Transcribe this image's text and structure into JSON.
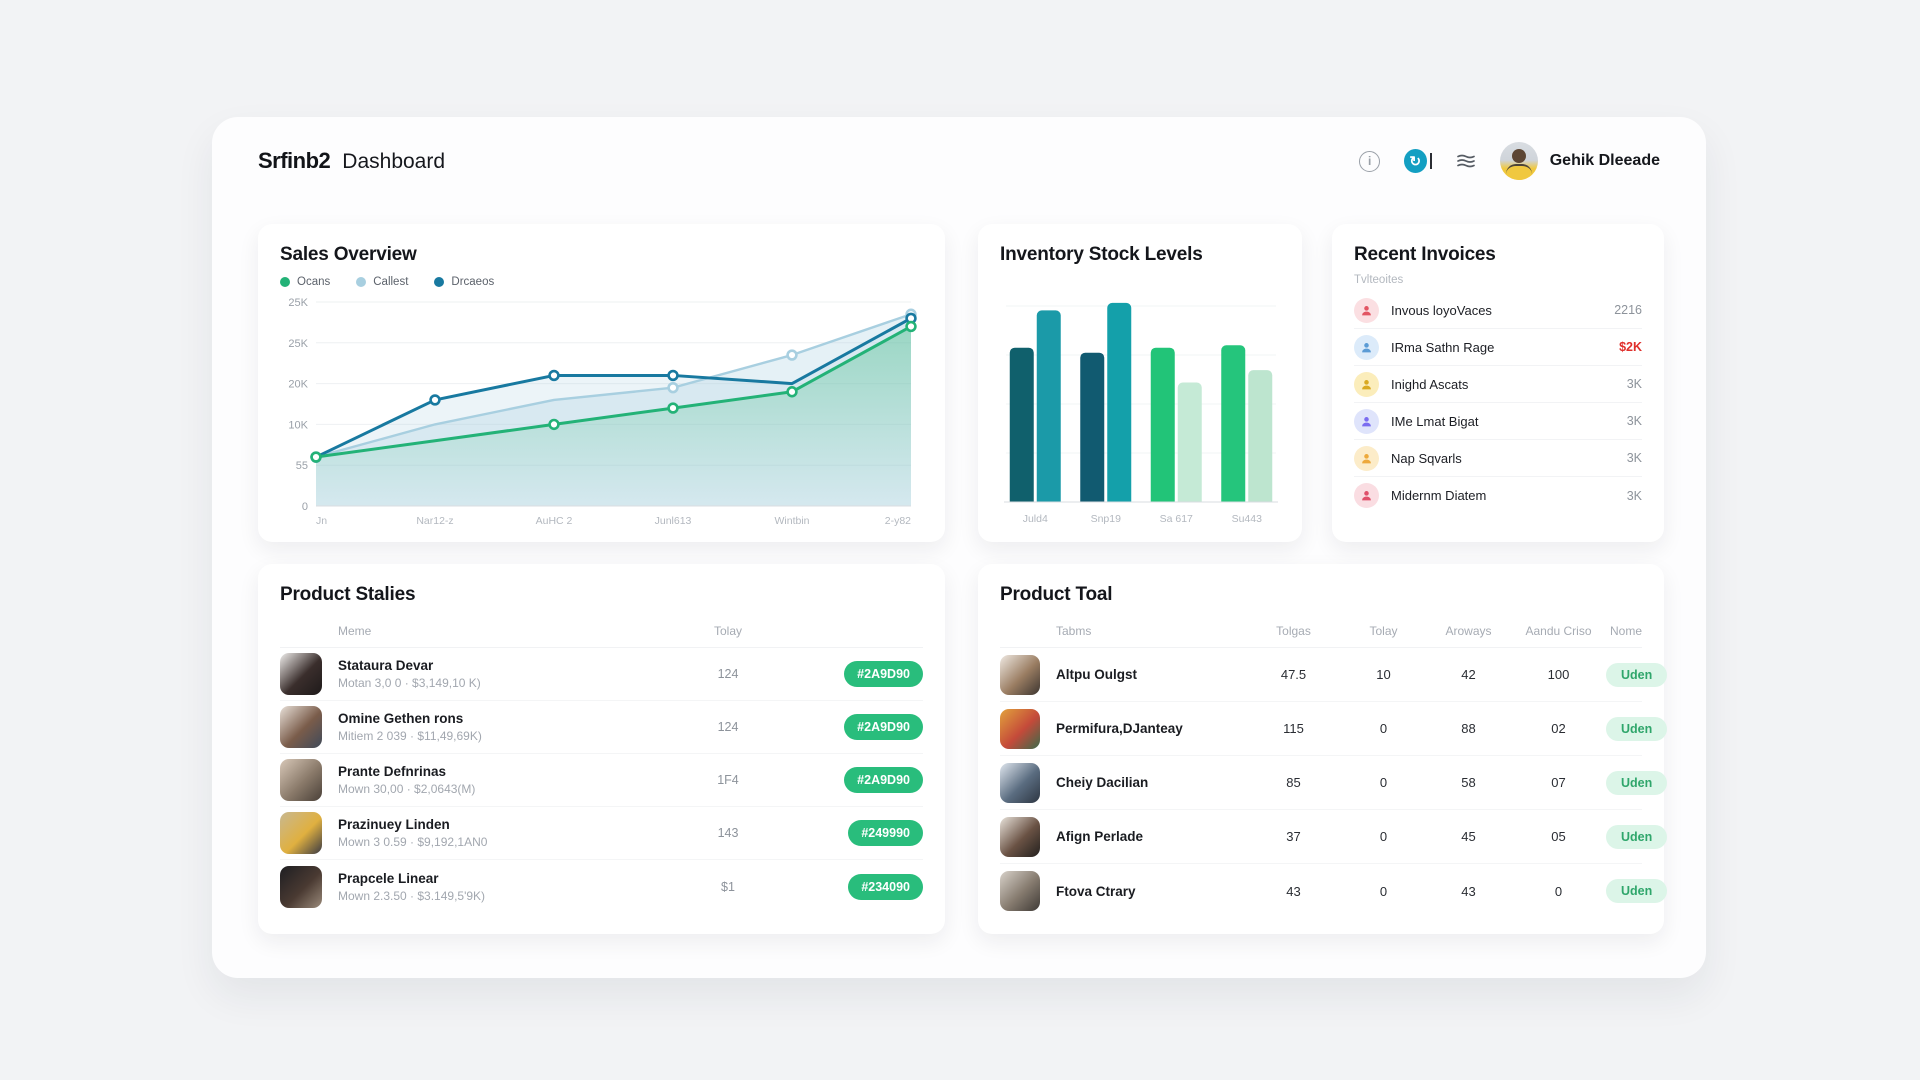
{
  "header": {
    "logo": "Srfinb2",
    "app_title": "Dashboard",
    "user_name": "Gehik Dleeade",
    "icons": [
      "info-icon",
      "app-circle-icon",
      "sliders-icon"
    ]
  },
  "accent": {
    "green": "#22ba77",
    "teal": "#1879a0",
    "red": "#e02f2b"
  },
  "chart_data": [
    {
      "type": "area",
      "title": "Sales Overview",
      "x": [
        "Jn",
        "Nar12-z",
        "AuHC 2",
        "Junl613",
        "Wintbin",
        "2-y82"
      ],
      "series": [
        {
          "name": "Ocans",
          "color": "#23b277",
          "values": [
            6,
            8,
            10,
            12,
            14,
            22
          ]
        },
        {
          "name": "Callest",
          "color": "#a8cfe0",
          "values": [
            6,
            10,
            13,
            14.5,
            18.5,
            23.5
          ]
        },
        {
          "name": "Drcaeos",
          "color": "#1879a0",
          "values": [
            6,
            13,
            16,
            16,
            15,
            23
          ]
        }
      ],
      "y_ticks": [
        "25K",
        "25K",
        "20K",
        "10K",
        "55",
        "0"
      ],
      "ylim": [
        0,
        25
      ],
      "grid": true,
      "legend_position": "top-left"
    },
    {
      "type": "bar",
      "title": "Inventory Stock Levels",
      "categories": [
        "Juld4",
        "Snp19",
        "Sa 617",
        "Su443"
      ],
      "series": [
        {
          "name": "primary",
          "values": [
            310,
            300,
            310,
            315
          ]
        },
        {
          "name": "secondary",
          "values": [
            385,
            400,
            240,
            265
          ]
        }
      ],
      "bar_colors": [
        [
          "#10606c",
          "#1b9aa8"
        ],
        [
          "#115a70",
          "#14a0aa"
        ],
        [
          "#22c478",
          "#c5ead6"
        ],
        [
          "#25c57c",
          "#bde5cf"
        ]
      ],
      "ylim": [
        0,
        430
      ],
      "grid": true
    }
  ],
  "sales_card": {
    "title": "Sales Overview"
  },
  "bars_card": {
    "title": "Inventory Stock Levels"
  },
  "invoices": {
    "title": "Recent Invoices",
    "subtitle": "Tvlteoites",
    "items": [
      {
        "name": "Invous loyoVaces",
        "value": "2216",
        "negative": false,
        "icon": "person-icon",
        "icon_bg": "#fbdfe2",
        "icon_color": "#e25563"
      },
      {
        "name": "IRma Sathn Rage",
        "value": "$2K",
        "negative": true,
        "icon": "person-icon",
        "icon_bg": "#dcebfa",
        "icon_color": "#5b9bd5"
      },
      {
        "name": "Inighd Ascats",
        "value": "3K",
        "negative": false,
        "icon": "person-icon",
        "icon_bg": "#fbedbb",
        "icon_color": "#d9a921"
      },
      {
        "name": "IMe Lmat Bigat",
        "value": "3K",
        "negative": false,
        "icon": "person-icon",
        "icon_bg": "#dfe4fb",
        "icon_color": "#7a6cf0"
      },
      {
        "name": "Nap Sqvarls",
        "value": "3K",
        "negative": false,
        "icon": "person-icon",
        "icon_bg": "#fcecc9",
        "icon_color": "#eda93c"
      },
      {
        "name": "Midernm Diatem",
        "value": "3K",
        "negative": false,
        "icon": "person-icon",
        "icon_bg": "#fadde2",
        "icon_color": "#e0506b"
      }
    ]
  },
  "product_stalies": {
    "title": "Product Stalies",
    "headers": {
      "name": "Meme",
      "qty": "Tolay"
    },
    "rows": [
      {
        "name": "Stataura Devar",
        "sub": "Motan 3,0 0  ·  $3,149,10 K)",
        "qty": "124",
        "badge": "#2A9D90",
        "avatar_colors": [
          "#f0eeec",
          "#3a2e2c",
          "#1e1a1a"
        ]
      },
      {
        "name": "Omine Gethen rons",
        "sub": "Mitiem 2 039  ·  $11,49,69K)",
        "qty": "124",
        "badge": "#2A9D90",
        "avatar_colors": [
          "#e8e0d8",
          "#7a5c4a",
          "#3f4a5a"
        ]
      },
      {
        "name": "Prante Defnrinas",
        "sub": "Mown 30,00  ·  $2,0643(M)",
        "qty": "1F4",
        "badge": "#2A9D90",
        "avatar_colors": [
          "#d8c8b8",
          "#8a7a6a",
          "#4a4038"
        ]
      },
      {
        "name": "Prazinuey Linden",
        "sub": "Mown 3 0.59  ·  $9,192,1AN0",
        "qty": "143",
        "badge": "#249990",
        "avatar_colors": [
          "#c8b890",
          "#e0b040",
          "#3a3a44"
        ]
      },
      {
        "name": "Prapcele Linear",
        "sub": "Mown 2.3.50  ·  $3.149,5'9K)",
        "qty": "$1",
        "badge": "#234090",
        "avatar_colors": [
          "#1e1e22",
          "#4a3a32",
          "#9a8a7a"
        ]
      }
    ]
  },
  "product_toal": {
    "title": "Product Toal",
    "headers": [
      "Tabms",
      "Tolgas",
      "Tolay",
      "Aroways",
      "Aandu Criso",
      "Nome"
    ],
    "rows": [
      {
        "name": "Altpu Oulgst",
        "values": [
          "47.5",
          "10",
          "42",
          "100"
        ],
        "status": "Uden",
        "avatar_colors": [
          "#efe9e2",
          "#9a7d62",
          "#3c3530"
        ]
      },
      {
        "name": "Permifura,DJanteay",
        "values": [
          "115",
          "0",
          "88",
          "02"
        ],
        "status": "Uden",
        "avatar_colors": [
          "#e2a23c",
          "#c44a3a",
          "#3a6a4a"
        ]
      },
      {
        "name": "Cheiy Dacilian",
        "values": [
          "85",
          "0",
          "58",
          "07"
        ],
        "status": "Uden",
        "avatar_colors": [
          "#dfe6ee",
          "#5a6c80",
          "#2d3642"
        ]
      },
      {
        "name": "Afign Perlade",
        "values": [
          "37",
          "0",
          "45",
          "05"
        ],
        "status": "Uden",
        "avatar_colors": [
          "#e8e2da",
          "#6a5244",
          "#23201e"
        ]
      },
      {
        "name": "Ftova Ctrary",
        "values": [
          "43",
          "0",
          "43",
          "0"
        ],
        "status": "Uden",
        "avatar_colors": [
          "#d8d2ca",
          "#857a6e",
          "#3e3a36"
        ]
      }
    ]
  }
}
